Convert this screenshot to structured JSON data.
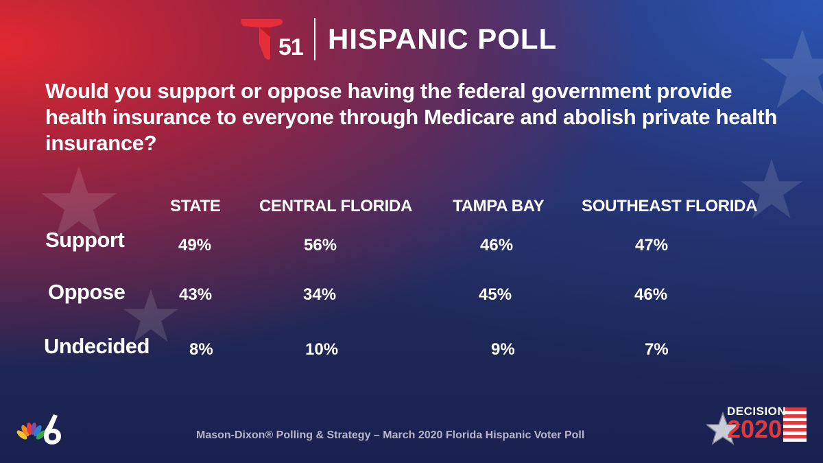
{
  "header": {
    "logo_number": "51",
    "title": "HISPANIC POLL"
  },
  "question": "Would you support or oppose having the federal government provide health insurance to everyone through Medicare and abolish private health insurance?",
  "table": {
    "columns": [
      "STATE",
      "CENTRAL FLORIDA",
      "TAMPA BAY",
      "SOUTHEAST FLORIDA"
    ],
    "rows": [
      {
        "label": "Support",
        "values": [
          "49%",
          "56%",
          "46%",
          "47%"
        ]
      },
      {
        "label": "Oppose",
        "values": [
          "43%",
          "34%",
          "45%",
          "46%"
        ]
      },
      {
        "label": "Undecided",
        "values": [
          "8%",
          "10%",
          "9%",
          "7%"
        ]
      }
    ]
  },
  "footer": {
    "source": "Mason-Dixon® Polling & Strategy – March 2020 Florida Hispanic Voter Poll",
    "decision_word": "DECISION",
    "decision_year": "2020"
  },
  "colors": {
    "brand_red": "#e62e3a",
    "text": "#ffffff",
    "source_text": "#b7b5cc"
  },
  "icons": [
    "telemundo-logo-icon",
    "nbc-peacock-icon",
    "decision-2020-flag-icon",
    "star-icon"
  ]
}
